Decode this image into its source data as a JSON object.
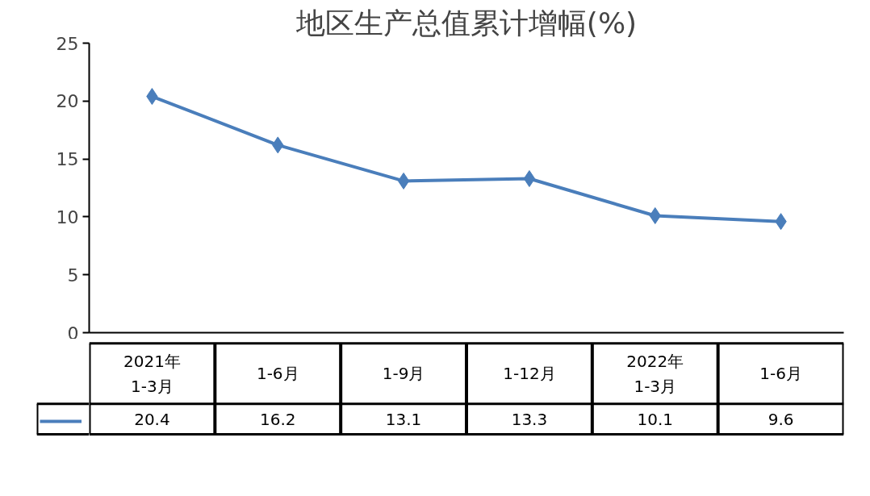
{
  "chart_data": {
    "type": "line",
    "title": "地区生产总值累计增幅(%)",
    "categories": [
      "2021年\n1-3月",
      "1-6月",
      "1-9月",
      "1-12月",
      "2022年\n1-3月",
      "1-6月"
    ],
    "series": [
      {
        "color": "#4a7ebb",
        "values": [
          20.4,
          16.2,
          13.1,
          13.3,
          10.1,
          9.6
        ]
      }
    ],
    "ylim": [
      0,
      25
    ],
    "yticks": [
      0,
      5,
      10,
      15,
      20,
      25
    ],
    "marker": "diamond",
    "data_labels": true
  }
}
